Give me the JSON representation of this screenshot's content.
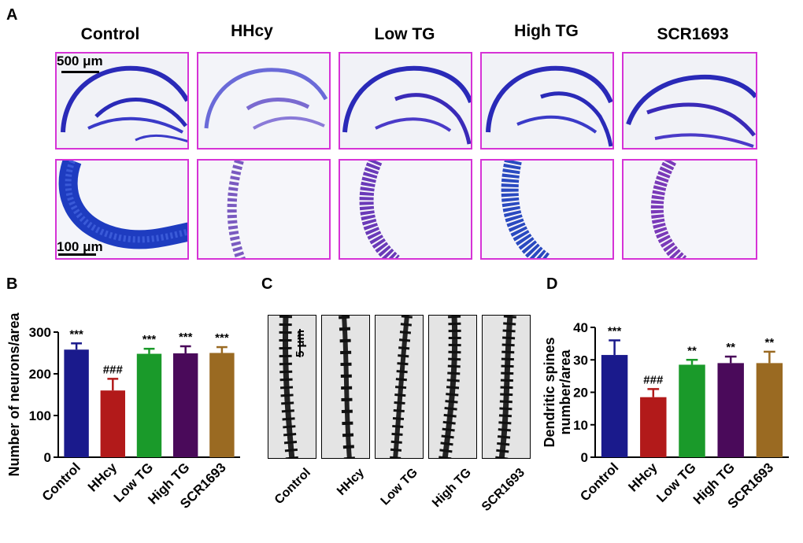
{
  "panel_a": {
    "letter": "A",
    "groups": [
      "Control",
      "HHcy",
      "Low TG",
      "High TG",
      "SCR1693"
    ],
    "scale_top": "500 μm",
    "scale_bottom": "100 μm"
  },
  "panel_b_letter": "B",
  "panel_c": {
    "letter": "C",
    "scale": "5 μm",
    "groups": [
      "Control",
      "HHcy",
      "Low TG",
      "High TG",
      "SCR1693"
    ]
  },
  "panel_d_letter": "D",
  "colors": {
    "control": "#1a1a8c",
    "hhcy": "#b21a1a",
    "low_tg": "#1a9a2a",
    "high_tg": "#4a0a5a",
    "scr1693": "#9a6a22",
    "frame": "#d633d6"
  },
  "chart_data": [
    {
      "type": "bar",
      "panel": "B",
      "categories": [
        "Control",
        "HHcy",
        "Low TG",
        "High TG",
        "SCR1693"
      ],
      "values": [
        258,
        160,
        248,
        249,
        250
      ],
      "errors": [
        15,
        28,
        12,
        17,
        14
      ],
      "annotations": [
        "***",
        "###",
        "***",
        "***",
        "***"
      ],
      "ylabel": "Number of neurons/area",
      "xlabel": "",
      "ylim": [
        0,
        300
      ],
      "yticks": [
        0,
        100,
        200,
        300
      ],
      "title": ""
    },
    {
      "type": "bar",
      "panel": "D",
      "categories": [
        "Control",
        "HHcy",
        "Low TG",
        "High TG",
        "SCR1693"
      ],
      "values": [
        31.5,
        18.5,
        28.5,
        29,
        29
      ],
      "errors": [
        4.5,
        2.5,
        1.5,
        2,
        3.5
      ],
      "annotations": [
        "***",
        "###",
        "**",
        "**",
        "**"
      ],
      "ylabel_line1": "Dendritic spines",
      "ylabel_line2": "number/area",
      "xlabel": "",
      "ylim": [
        0,
        40
      ],
      "yticks": [
        0,
        10,
        20,
        30,
        40
      ],
      "title": ""
    }
  ]
}
